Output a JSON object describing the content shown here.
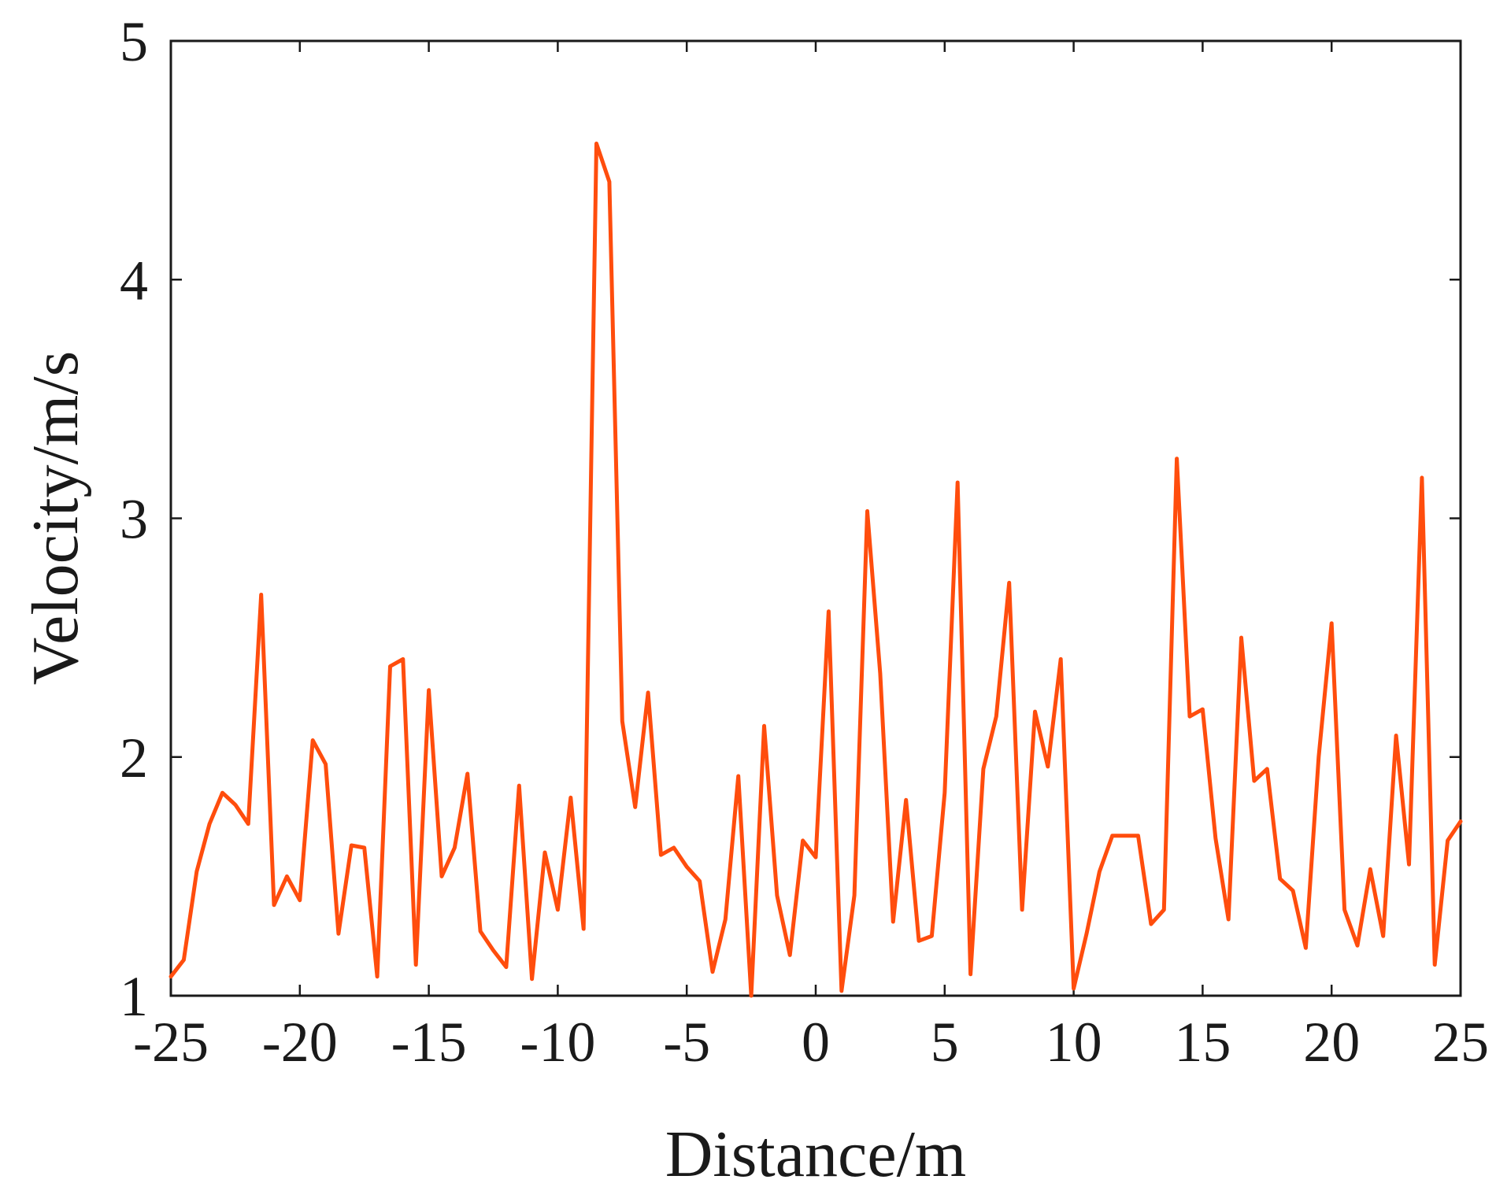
{
  "chart_data": {
    "type": "line",
    "title": "",
    "xlabel": "Distance/m",
    "ylabel": "Velocity/m/s",
    "xlim": [
      -25,
      25
    ],
    "ylim": [
      1,
      5
    ],
    "xticks": [
      -25,
      -20,
      -15,
      -10,
      -5,
      0,
      5,
      10,
      15,
      20,
      25
    ],
    "yticks": [
      1,
      2,
      3,
      4,
      5
    ],
    "grid": false,
    "line_color": "#ff4d0d",
    "series": [
      {
        "x": [
          -25.0,
          -24.5,
          -24.0,
          -23.5,
          -23.0,
          -22.5,
          -22.0,
          -21.5,
          -21.0,
          -20.5,
          -20.0,
          -19.5,
          -19.0,
          -18.5,
          -18.0,
          -17.5,
          -17.0,
          -16.5,
          -16.0,
          -15.5,
          -15.0,
          -14.5,
          -14.0,
          -13.5,
          -13.0,
          -12.5,
          -12.0,
          -11.5,
          -11.0,
          -10.5,
          -10.0,
          -9.5,
          -9.0,
          -8.5,
          -8.0,
          -7.5,
          -7.0,
          -6.5,
          -6.0,
          -5.5,
          -5.0,
          -4.5,
          -4.0,
          -3.5,
          -3.0,
          -2.5,
          -2.0,
          -1.5,
          -1.0,
          -0.5,
          0.0,
          0.5,
          1.0,
          1.5,
          2.0,
          2.5,
          3.0,
          3.5,
          4.0,
          4.5,
          5.0,
          5.5,
          6.0,
          6.5,
          7.0,
          7.5,
          8.0,
          8.5,
          9.0,
          9.5,
          10.0,
          10.5,
          11.0,
          11.5,
          12.0,
          12.5,
          13.0,
          13.5,
          14.0,
          14.5,
          15.0,
          15.5,
          16.0,
          16.5,
          17.0,
          17.5,
          18.0,
          18.5,
          19.0,
          19.5,
          20.0,
          20.5,
          21.0,
          21.5,
          22.0,
          22.5,
          23.0,
          23.5,
          24.0,
          24.5,
          25.0
        ],
        "y": [
          1.08,
          1.15,
          1.52,
          1.72,
          1.85,
          1.8,
          1.72,
          2.68,
          1.38,
          1.5,
          1.4,
          2.07,
          1.97,
          1.26,
          1.63,
          1.62,
          1.08,
          2.38,
          2.41,
          1.13,
          2.28,
          1.5,
          1.62,
          1.93,
          1.27,
          1.19,
          1.12,
          1.88,
          1.07,
          1.6,
          1.36,
          1.83,
          1.28,
          4.57,
          4.41,
          2.15,
          1.79,
          2.27,
          1.59,
          1.62,
          1.54,
          1.48,
          1.1,
          1.32,
          1.92,
          1.0,
          2.13,
          1.42,
          1.17,
          1.65,
          1.58,
          2.61,
          1.02,
          1.42,
          3.03,
          2.35,
          1.31,
          1.82,
          1.23,
          1.25,
          1.85,
          3.15,
          1.09,
          1.95,
          2.17,
          2.73,
          1.36,
          2.19,
          1.96,
          2.41,
          1.03,
          1.26,
          1.52,
          1.67,
          1.67,
          1.67,
          1.3,
          1.36,
          3.25,
          2.17,
          2.2,
          1.66,
          1.32,
          2.5,
          1.9,
          1.95,
          1.49,
          1.44,
          1.2,
          2.0,
          2.56,
          1.36,
          1.21,
          1.53,
          1.25,
          2.09,
          1.55,
          3.17,
          1.13,
          1.65,
          1.73
        ]
      }
    ]
  }
}
